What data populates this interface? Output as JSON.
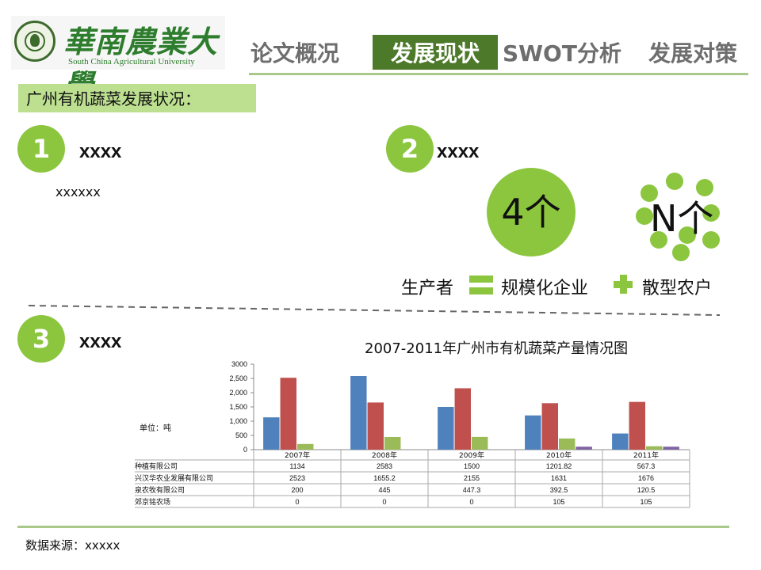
{
  "logo": {
    "cn": "華南農業大學",
    "en": "South China Agricultural University"
  },
  "nav": [
    {
      "label": "论文概况",
      "active": false
    },
    {
      "label": "发展现状",
      "active": true
    },
    {
      "label": "SWOT分析",
      "active": false
    },
    {
      "label": "发展对策",
      "active": false
    }
  ],
  "colors": {
    "accent": "#8cc63f",
    "nav_active": "#4d7a2a",
    "section_bg": "#bcdf90",
    "line": "#a9c98b"
  },
  "section_title": "广州有机蔬菜发展状况：",
  "items": [
    {
      "number": "1",
      "heading": "xxxx",
      "text": "xxxxxx"
    },
    {
      "number": "2",
      "heading": "xxxx"
    },
    {
      "number": "3",
      "heading": "xxxx"
    }
  ],
  "equation": {
    "big_circle": "4个",
    "cluster": "N个",
    "producer": "生产者",
    "equals_sign": "equals-icon",
    "large_enterprise": "规模化企业",
    "plus_sign": "plus-icon",
    "scattered_farmers": "散型农户"
  },
  "chart_data": {
    "type": "bar",
    "title": "2007-2011年广州市有机蔬菜产量情况图",
    "ylabel": "单位：吨",
    "ylim": [
      0,
      3000
    ],
    "yticks": [
      "3000",
      "2,500",
      "2,000",
      "1,500",
      "1,000",
      "500",
      "0"
    ],
    "categories": [
      "2007年",
      "2008年",
      "2009年",
      "2010年",
      "2011年"
    ],
    "series": [
      {
        "name": "东升有机种植有限公司",
        "color": "#4f81bd",
        "values": [
          1134,
          2583,
          1500,
          1201.82,
          567.3
        ],
        "labels": [
          "1134",
          "2583",
          "1500",
          "1201.82",
          "567.3"
        ]
      },
      {
        "name": "广州市金兴汉华农业发展有限公司",
        "color": "#c0504d",
        "values": [
          2523,
          1655.2,
          2155,
          1631,
          1676
        ],
        "labels": [
          "2523",
          "1655.2",
          "2155",
          "1631",
          "1676"
        ]
      },
      {
        "name": "广州市康泉农牧有限公司",
        "color": "#9bbb59",
        "values": [
          200,
          445,
          447.3,
          392.5,
          120.5
        ],
        "labels": [
          "200",
          "445",
          "447.3",
          "392.5",
          "120.5"
        ]
      },
      {
        "name": "从化市城郊京铭农场",
        "color": "#8064a2",
        "values": [
          0,
          0,
          0,
          105,
          105
        ],
        "labels": [
          "0",
          "0",
          "0",
          "105",
          "105"
        ]
      }
    ],
    "grid": false,
    "legend": "data-table-below"
  },
  "source": "数据来源：xxxxx"
}
